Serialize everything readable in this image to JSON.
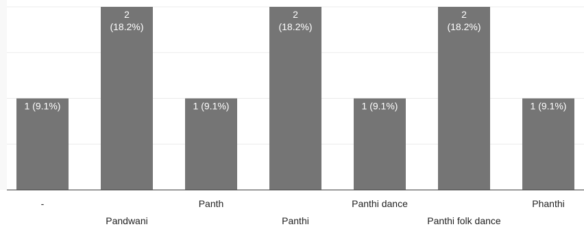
{
  "chart_data": {
    "type": "bar",
    "categories": [
      "-",
      "Pandwani",
      "Panth",
      "Panthi",
      "Panthi dance",
      "Panthi folk dance",
      "Phanthi"
    ],
    "values": [
      1,
      2,
      1,
      2,
      1,
      2,
      1
    ],
    "data_labels": [
      [
        "1 (9.1%)"
      ],
      [
        "2",
        "(18.2%)"
      ],
      [
        "1 (9.1%)"
      ],
      [
        "2",
        "(18.2%)"
      ],
      [
        "1 (9.1%)"
      ],
      [
        "2",
        "(18.2%)"
      ],
      [
        "1 (9.1%)"
      ]
    ],
    "title": "",
    "xlabel": "",
    "ylabel": "",
    "ylim": [
      0,
      2
    ],
    "grid": true,
    "legend": "none",
    "colors": {
      "bar": "#757575",
      "data_label": "#ffffff",
      "tick_label": "#222222",
      "grid": "#ebebeb"
    }
  }
}
